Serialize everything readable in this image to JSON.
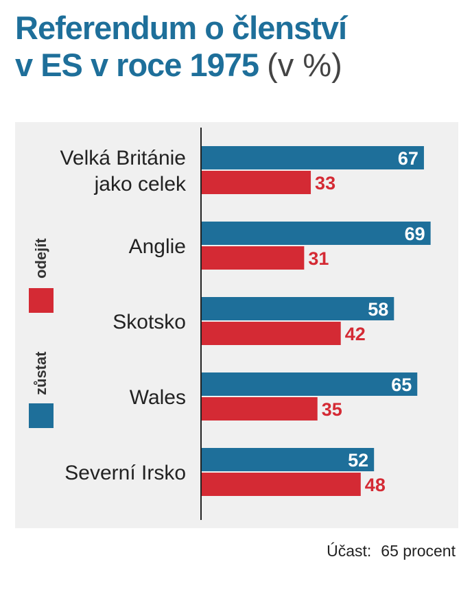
{
  "colors": {
    "stay": "#1e6f9a",
    "leave": "#d42a34",
    "title": "#1e6f9a",
    "panel": "#f0f0f0",
    "axis": "#222222"
  },
  "chart_data": {
    "type": "bar",
    "orientation": "horizontal",
    "title": "Referendum o členství v ES v roce 1975",
    "title_line1": "Referendum o členství",
    "title_line2": "v ES v roce 1975",
    "title_unit": "(v %)",
    "categories": [
      "Velká Británie jako celek",
      "Anglie",
      "Skotsko",
      "Wales",
      "Severní Irsko"
    ],
    "category_lines": [
      [
        "Velká Británie",
        "jako celek"
      ],
      [
        "Anglie"
      ],
      [
        "Skotsko"
      ],
      [
        "Wales"
      ],
      [
        "Severní Irsko"
      ]
    ],
    "series": [
      {
        "name": "zůstat",
        "color": "#1e6f9a",
        "values": [
          67,
          69,
          58,
          65,
          52
        ]
      },
      {
        "name": "odejít",
        "color": "#d42a34",
        "values": [
          33,
          31,
          42,
          35,
          48
        ]
      }
    ],
    "xlim": [
      0,
      70
    ],
    "grid": false,
    "legend_position": "left",
    "footer_label": "Účast:",
    "footer_value": "65 procent"
  }
}
